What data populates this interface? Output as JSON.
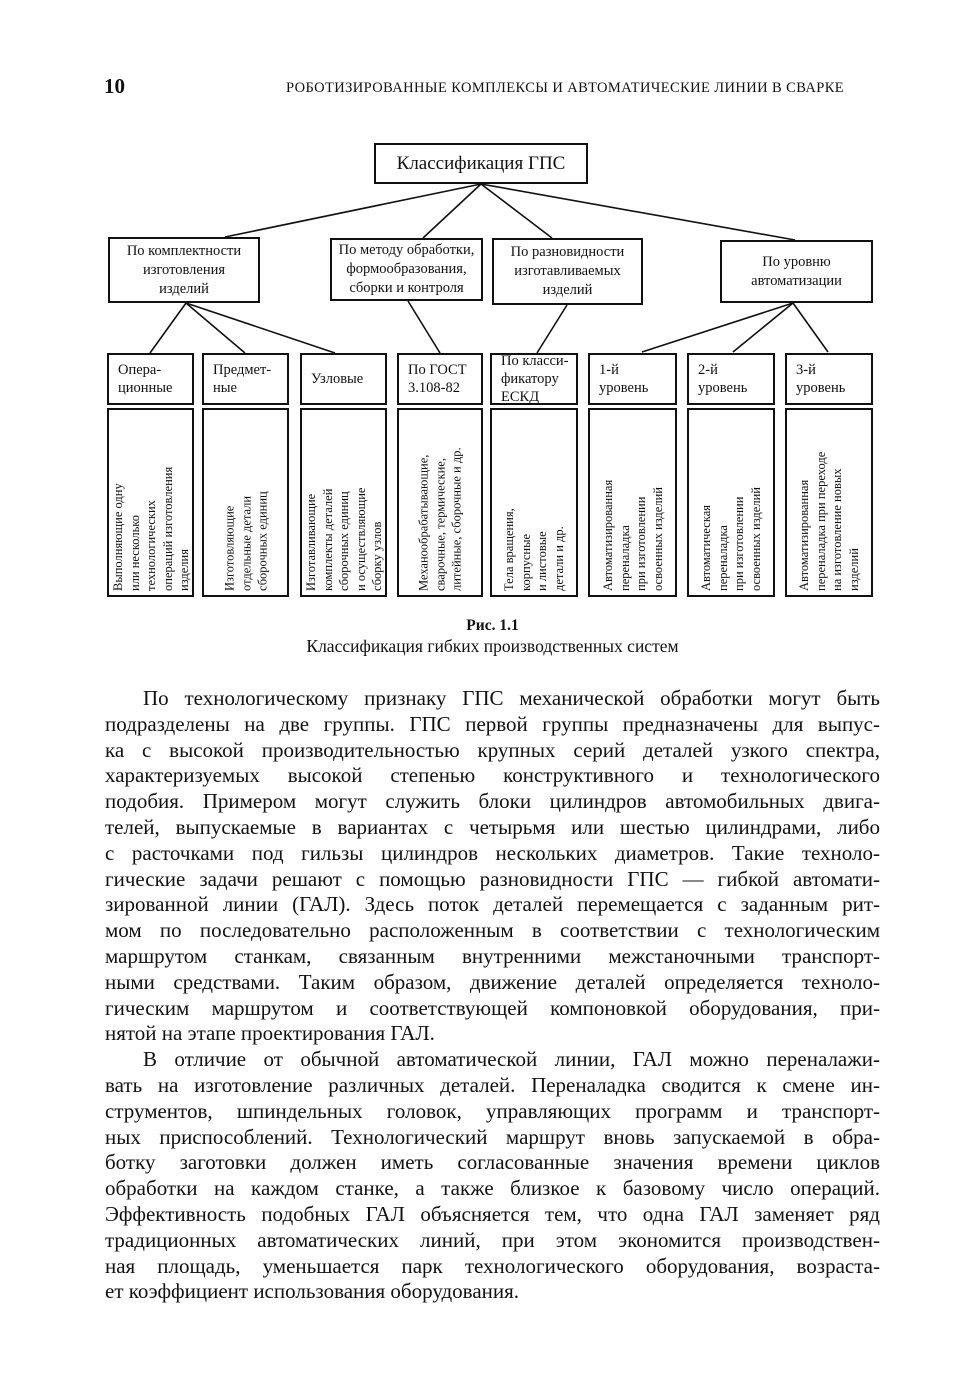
{
  "page": {
    "number": "10",
    "running_head": "РОБОТИЗИРОВАННЫЕ КОМПЛЕКСЫ И АВТОМАТИЧЕСКИЕ ЛИНИИ В СВАРКЕ"
  },
  "figure": {
    "root": "Классификация ГПС",
    "branches": [
      {
        "label": "По комплектности\nизготовления\nизделий"
      },
      {
        "label": "По методу обработки,\nформообразования,\nсборки и контроля"
      },
      {
        "label": "По разновидности\nизготавливаемых\nизделий"
      },
      {
        "label": "По уровню\nавтоматизации"
      }
    ],
    "leaves": [
      {
        "title": "Опера-\nционные",
        "desc": "Выполняющие одну\nили несколько\nтехнологических\nопераций изготовления\nизделия"
      },
      {
        "title": "Предмет-\nные",
        "desc": "Изготовляющие\nотдельные детали\nсборочных единиц"
      },
      {
        "title": "Узловые",
        "desc": "Изготавливающие\nкомплекты деталей\nсборочных единиц\nи осуществляющие\nсборку узлов"
      },
      {
        "title": "По ГОСТ\n3.108-82",
        "desc": "Механообрабатывающие,\nсварочные, термические,\nлитейные, сборочные и др."
      },
      {
        "title": "По класси-\nфикатору\nЕСКД",
        "desc": "Тела вращения,\nкорпусные\nи листовые\nдетали и др."
      },
      {
        "title": "1-й\nуровень",
        "desc": "Автоматизированная\nпереналадка\nпри изготовлении\nосвоенных изделий"
      },
      {
        "title": "2-й\nуровень",
        "desc": "Автоматическая\nпереналадка\nпри изготовлении\nосвоенных изделий"
      },
      {
        "title": "3-й\nуровень",
        "desc": "Автоматизированная\nпереналадка при переходе\nна изготовление новых\nизделий"
      }
    ],
    "caption_label": "Рис. 1.1",
    "caption_text": "Классификация гибких производственных систем"
  },
  "body": {
    "paragraphs": [
      {
        "lines": [
          "По технологическому признаку ГПС механической обработки могут быть",
          "подразделены на две группы. ГПС первой группы предназначены для выпус-",
          "ка с высокой производительностью крупных серий деталей узкого спектра,",
          "характеризуемых высокой степенью конструктивного и технологического",
          "подобия. Примером могут служить блоки цилиндров автомобильных двига-",
          "телей, выпускаемые в вариантах с четырьмя или шестью цилиндрами, либо",
          "с расточками под гильзы цилиндров нескольких диаметров. Такие техноло-",
          "гические задачи решают с помощью разновидности ГПС — гибкой автомати-",
          "зированной линии (ГАЛ). Здесь поток деталей перемещается с заданным рит-",
          "мом по последовательно расположенным в соответствии с технологическим",
          "маршрутом станкам, связанным внутренними межстаночными транспорт-",
          "ными средствами. Таким образом, движение деталей определяется техноло-",
          "гическим маршрутом и соответствующей компоновкой оборудования, при-",
          "нятой на этапе проектирования ГАЛ."
        ]
      },
      {
        "lines": [
          "В отличие от обычной автоматической линии, ГАЛ можно переналажи-",
          "вать на изготовление различных деталей. Переналадка сводится к смене ин-",
          "струментов, шпиндельных головок, управляющих программ и транспорт-",
          "ных приспособлений. Технологический маршрут вновь запускаемой в обра-",
          "ботку заготовки должен иметь согласованные значения времени циклов",
          "обработки на каждом станке, а также близкое к базовому число операций.",
          "Эффективность подобных ГАЛ объясняется тем, что одна ГАЛ заменяет ряд",
          "традиционных автоматических линий, при этом экономится производствен-",
          "ная площадь, уменьшается парк технологического оборудования, возраста-",
          "ет коэффициент использования оборудования."
        ]
      }
    ]
  }
}
